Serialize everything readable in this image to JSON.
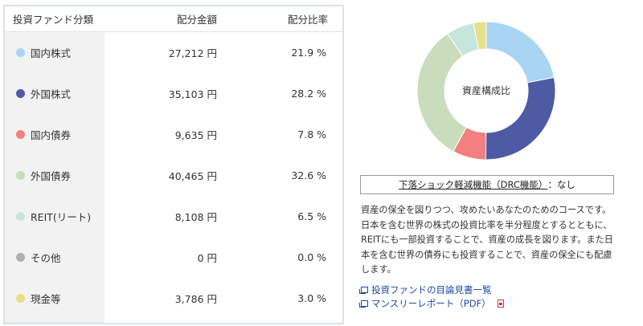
{
  "table": {
    "headers": {
      "category": "投資ファンド分類",
      "amount": "配分金額",
      "ratio": "配分比率"
    },
    "rows": [
      {
        "label": "国内株式",
        "amount": "27,212 円",
        "ratio": "21.9 %",
        "color": "#a9d4f4"
      },
      {
        "label": "外国株式",
        "amount": "35,103 円",
        "ratio": "28.2 %",
        "color": "#4f5aa5"
      },
      {
        "label": "国内債券",
        "amount": "9,635 円",
        "ratio": "7.8 %",
        "color": "#f28080"
      },
      {
        "label": "外国債券",
        "amount": "40,465 円",
        "ratio": "32.6 %",
        "color": "#c9ddbc"
      },
      {
        "label": "REIT(リート)",
        "amount": "8,108 円",
        "ratio": "6.5 %",
        "color": "#c6e6dc"
      },
      {
        "label": "その他",
        "amount": "0 円",
        "ratio": "0.0 %",
        "color": "#b0b0b0"
      },
      {
        "label": "現金等",
        "amount": "3,786 円",
        "ratio": "3.0 %",
        "color": "#e6e08a"
      }
    ]
  },
  "chart_data": {
    "type": "pie",
    "title": "資産構成比",
    "labels": [
      "国内株式",
      "外国株式",
      "国内債券",
      "外国債券",
      "REIT(リート)",
      "その他",
      "現金等"
    ],
    "values": [
      21.9,
      28.2,
      7.8,
      32.6,
      6.5,
      0.0,
      3.0
    ],
    "colors": [
      "#a9d4f4",
      "#4f5aa5",
      "#f28080",
      "#c9ddbc",
      "#c6e6dc",
      "#b0b0b0",
      "#e6e08a"
    ]
  },
  "drc": {
    "label": "下落ショック軽減機能（DRC機能）",
    "value": "：なし"
  },
  "description": "資産の保全を図りつつ、攻めたいあなたのためのコースです。日本を含む世界の株式の投資比率を半分程度とするとともに、REITにも一部投資することで、資産の成長を図ります。また日本を含む世界の債券にも投資することで、資産の保全にも配慮します。",
  "links": [
    {
      "text": "投資ファンドの目論見書一覧"
    },
    {
      "text": "マンスリーレポート（PDF）"
    }
  ]
}
